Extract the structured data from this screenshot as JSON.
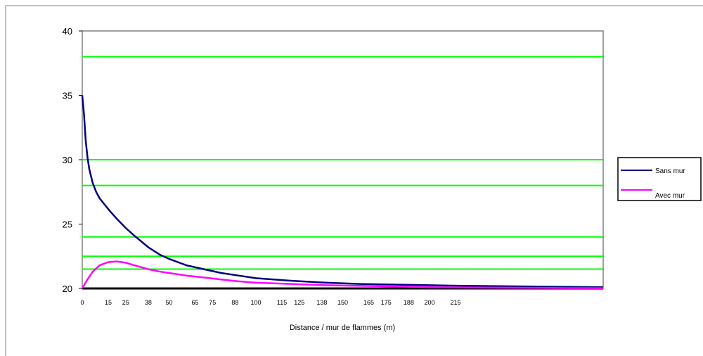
{
  "chart_data": {
    "type": "line",
    "title": "",
    "xlabel": "Distance / mur de flammes (m)",
    "ylabel": "",
    "xlim": [
      0,
      300
    ],
    "ylim": [
      20,
      40
    ],
    "y_ticks": [
      20,
      25,
      30,
      35,
      40
    ],
    "x_tick_labels": [
      "0",
      "15",
      "25",
      "38",
      "50",
      "65",
      "75",
      "88",
      "100",
      "115",
      "125",
      "138",
      "150",
      "165",
      "175",
      "188",
      "200",
      "215"
    ],
    "x_tick_values": [
      0,
      15,
      25,
      38,
      50,
      65,
      75,
      88,
      100,
      115,
      125,
      138,
      150,
      165,
      175,
      188,
      200,
      215
    ],
    "grid": "off",
    "reference_lines": [
      {
        "y": 38,
        "color": "#00ff00"
      },
      {
        "y": 30,
        "color": "#00ff00"
      },
      {
        "y": 28,
        "color": "#00ff00"
      },
      {
        "y": 24,
        "color": "#00ff00"
      },
      {
        "y": 22.5,
        "color": "#00ff00"
      },
      {
        "y": 21.5,
        "color": "#00ff00"
      },
      {
        "y": 20,
        "color": "#000000"
      }
    ],
    "legend_position": "right",
    "series": [
      {
        "name": "Sans mur",
        "color": "#000080",
        "x": [
          0,
          1,
          2,
          3,
          4,
          6,
          8,
          10,
          13,
          16,
          20,
          25,
          30,
          38,
          45,
          50,
          60,
          70,
          80,
          90,
          100,
          120,
          140,
          160,
          180,
          200,
          220,
          240,
          260,
          280,
          300
        ],
        "y": [
          35,
          33.5,
          31.5,
          30.2,
          29.3,
          28.2,
          27.5,
          27.0,
          26.5,
          26.0,
          25.4,
          24.7,
          24.1,
          23.2,
          22.6,
          22.3,
          21.8,
          21.5,
          21.2,
          21.0,
          20.8,
          20.6,
          20.45,
          20.35,
          20.3,
          20.25,
          20.2,
          20.18,
          20.15,
          20.12,
          20.1
        ]
      },
      {
        "name": "Avec mur",
        "color": "#ff00ff",
        "x": [
          0,
          3,
          6,
          10,
          15,
          20,
          25,
          30,
          38,
          45,
          50,
          60,
          70,
          80,
          90,
          100,
          120,
          140,
          160,
          180,
          200,
          220,
          240,
          260,
          280,
          300
        ],
        "y": [
          20,
          20.7,
          21.3,
          21.8,
          22.05,
          22.1,
          22.0,
          21.8,
          21.5,
          21.3,
          21.2,
          21.0,
          20.85,
          20.7,
          20.55,
          20.45,
          20.35,
          20.25,
          20.2,
          20.15,
          20.1,
          20.08,
          20.06,
          20.05,
          20.03,
          20.02
        ]
      }
    ]
  }
}
